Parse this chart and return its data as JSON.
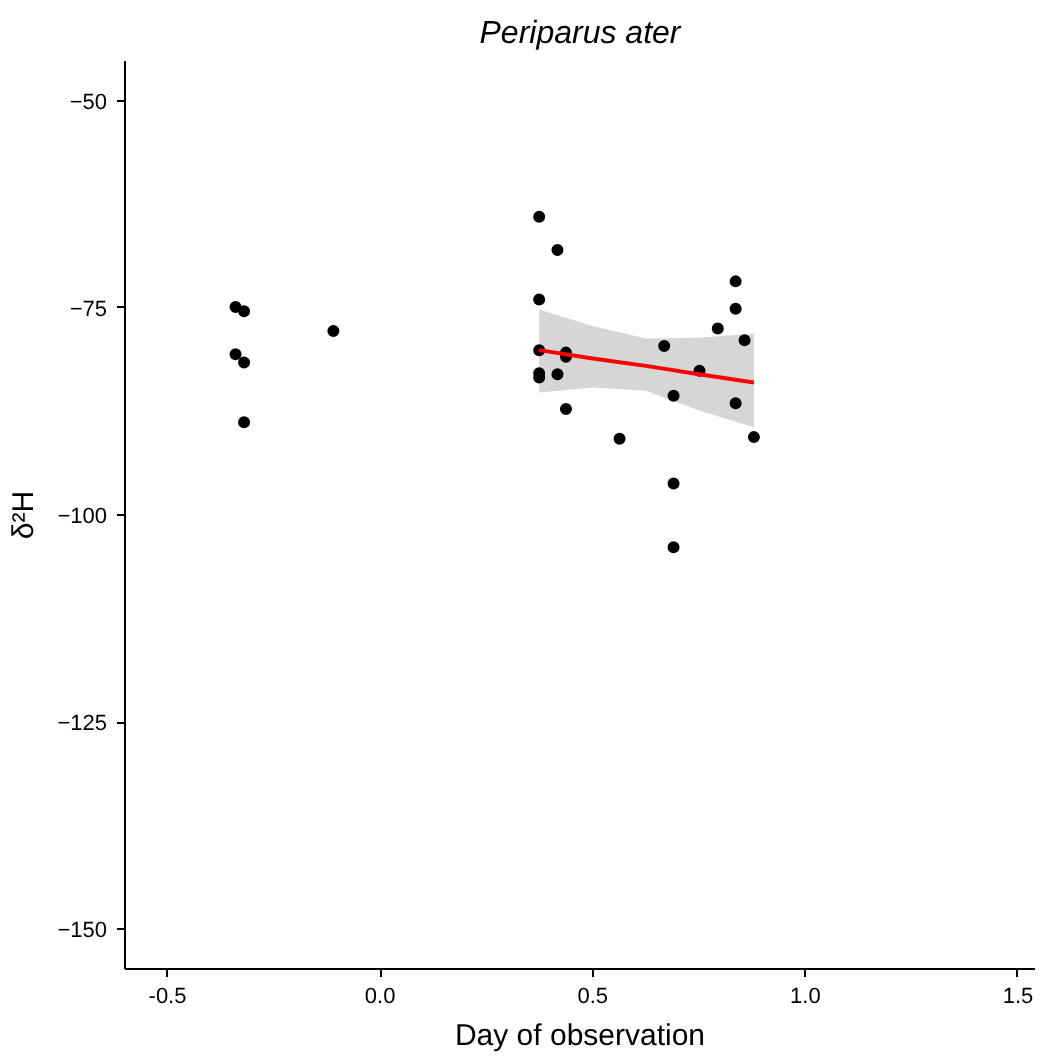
{
  "chart_data": {
    "type": "scatter",
    "title": "Periparus ater",
    "xlabel": "Day of observation",
    "ylabel": "δ²H",
    "xlim": [
      -0.6,
      1.54
    ],
    "xticks": [
      {
        "value": -0.5,
        "label": "-0.5"
      },
      {
        "value": 0,
        "label": "0.0"
      },
      {
        "value": 0.5,
        "label": "0.5"
      },
      {
        "value": 1,
        "label": "1.0"
      },
      {
        "value": 1.5,
        "label": "1.5"
      }
    ],
    "ylim": [
      -154.8,
      -45.2
    ],
    "yticks": [
      -150,
      -125,
      -100,
      -75,
      -50
    ],
    "grid": false,
    "marker": "circle",
    "series": [
      {
        "color": "#000000",
        "x": [
          -0.34,
          -0.32,
          -0.34,
          -0.32,
          -0.32,
          -0.11,
          0.374,
          0.417,
          0.374,
          0.374,
          0.437,
          0.437,
          0.374,
          0.374,
          0.417,
          0.437,
          0.563,
          0.668,
          0.69,
          0.69,
          0.69,
          0.751,
          0.794,
          0.836,
          0.836,
          0.857,
          0.836,
          0.879
        ],
        "values": [
          -74.9,
          -75.4,
          -80.6,
          -81.6,
          -88.8,
          -77.8,
          -64.0,
          -68.0,
          -74.0,
          -80.1,
          -80.4,
          -80.9,
          -82.9,
          -83.4,
          -83.0,
          -87.2,
          -90.8,
          -79.6,
          -85.6,
          -96.2,
          -103.9,
          -82.6,
          -77.5,
          -71.8,
          -75.1,
          -78.9,
          -86.5,
          -90.6
        ]
      },
      {
        "type": "line",
        "marker": "none",
        "color": "#ff0000",
        "x": [
          0.374,
          0.5,
          0.625,
          0.75,
          0.879
        ],
        "values": [
          -80.1,
          -81.1,
          -82.0,
          -83.0,
          -84.0
        ],
        "lower": [
          -85.2,
          -84.6,
          -85.0,
          -87.4,
          -89.4
        ],
        "upper": [
          -75.2,
          -77.2,
          -78.7,
          -78.6,
          -78.1
        ]
      }
    ]
  }
}
